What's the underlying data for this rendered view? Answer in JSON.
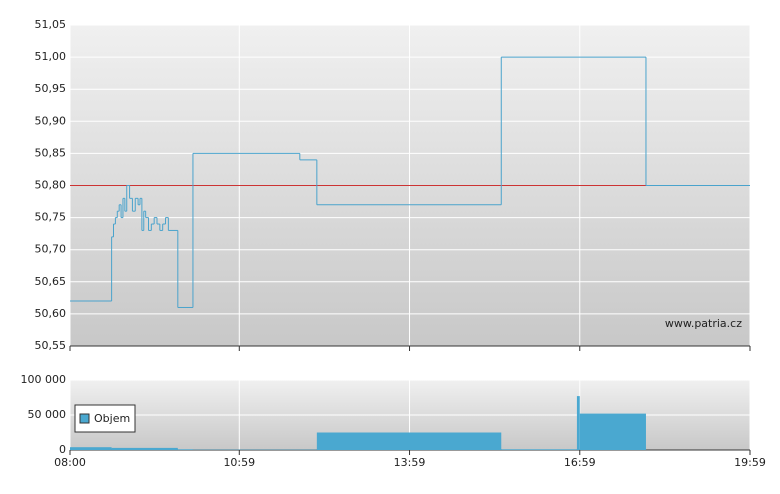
{
  "chart_data": [
    {
      "type": "line",
      "watermark": "www.patria.cz",
      "xlim": [
        "08:00",
        "19:59"
      ],
      "ylim": [
        50.55,
        51.05
      ],
      "yticks": [
        {
          "value": 50.55,
          "label": "50,55"
        },
        {
          "value": 50.6,
          "label": "50,60"
        },
        {
          "value": 50.65,
          "label": "50,65"
        },
        {
          "value": 50.7,
          "label": "50,70"
        },
        {
          "value": 50.75,
          "label": "50,75"
        },
        {
          "value": 50.8,
          "label": "50,80"
        },
        {
          "value": 50.85,
          "label": "50,85"
        },
        {
          "value": 50.9,
          "label": "50,90"
        },
        {
          "value": 50.95,
          "label": "50,95"
        },
        {
          "value": 51.0,
          "label": "51,00"
        },
        {
          "value": 51.05,
          "label": "51,05"
        }
      ],
      "grid": true,
      "reference_line": 50.8,
      "reference_color": "#cc3333",
      "series": [
        {
          "color": "#4aa3cc",
          "x": [
            "08:00",
            "08:44",
            "08:46",
            "08:48",
            "08:50",
            "08:52",
            "08:54",
            "08:56",
            "08:58",
            "09:00",
            "09:03",
            "09:06",
            "09:09",
            "09:12",
            "09:14",
            "09:16",
            "09:18",
            "09:20",
            "09:23",
            "09:26",
            "09:29",
            "09:32",
            "09:35",
            "09:38",
            "09:41",
            "09:44",
            "09:54",
            "10:10",
            "12:03",
            "12:21",
            "15:36",
            "18:09",
            "19:59"
          ],
          "values": [
            50.62,
            50.72,
            50.74,
            50.75,
            50.76,
            50.77,
            50.75,
            50.78,
            50.76,
            50.8,
            50.78,
            50.76,
            50.78,
            50.77,
            50.78,
            50.73,
            50.76,
            50.75,
            50.73,
            50.74,
            50.75,
            50.74,
            50.73,
            50.74,
            50.75,
            50.73,
            50.61,
            50.85,
            50.84,
            50.77,
            51.0,
            50.8,
            50.8
          ]
        }
      ]
    },
    {
      "type": "bar",
      "xlim": [
        "08:00",
        "19:59"
      ],
      "xticks": [
        "08:00",
        "10:59",
        "13:59",
        "16:59",
        "19:59"
      ],
      "ylim": [
        0,
        100000
      ],
      "yticks": [
        0,
        {
          "value": 50000,
          "label": "50 000"
        },
        {
          "value": 100000,
          "label": "100 000"
        }
      ],
      "grid": true,
      "legend": "top-left",
      "series": [
        {
          "name": "Objem",
          "color": "#4aa8d0",
          "x": [
            "08:00",
            "08:44",
            "09:54",
            "10:10",
            "12:21",
            "15:36",
            "16:56",
            "16:59",
            "18:09"
          ],
          "values": [
            4000,
            3000,
            1000,
            500,
            25000,
            1000,
            77000,
            52000,
            0
          ]
        }
      ]
    }
  ]
}
